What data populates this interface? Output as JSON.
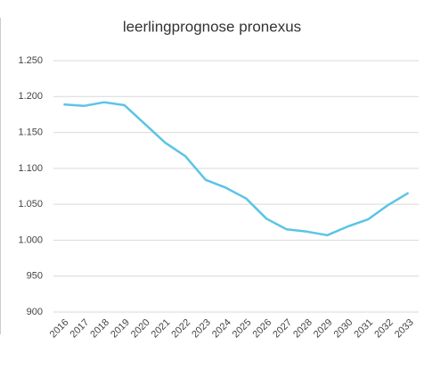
{
  "chart_data": {
    "type": "line",
    "title": "leerlingprognose pronexus",
    "categories": [
      "2016",
      "2017",
      "2018",
      "2019",
      "2020",
      "2021",
      "2022",
      "2023",
      "2024",
      "2025",
      "2026",
      "2027",
      "2028",
      "2029",
      "2030",
      "2031",
      "2032",
      "2033"
    ],
    "values": [
      1189,
      1187,
      1192,
      1188,
      1162,
      1136,
      1117,
      1084,
      1073,
      1058,
      1030,
      1015,
      1012,
      1007,
      1019,
      1029,
      1049,
      1066
    ],
    "color": "#5bc4e6",
    "ylim": [
      900,
      1250
    ],
    "yticks": [
      900,
      950,
      {
        "value": 1000,
        "label": "1.000"
      },
      {
        "value": 1050,
        "label": "1.050"
      },
      {
        "value": 1100,
        "label": "1.100"
      },
      {
        "value": 1150,
        "label": "1.150"
      },
      {
        "value": 1200,
        "label": "1.200"
      },
      {
        "value": 1250,
        "label": "1.250"
      }
    ],
    "grid": true
  }
}
